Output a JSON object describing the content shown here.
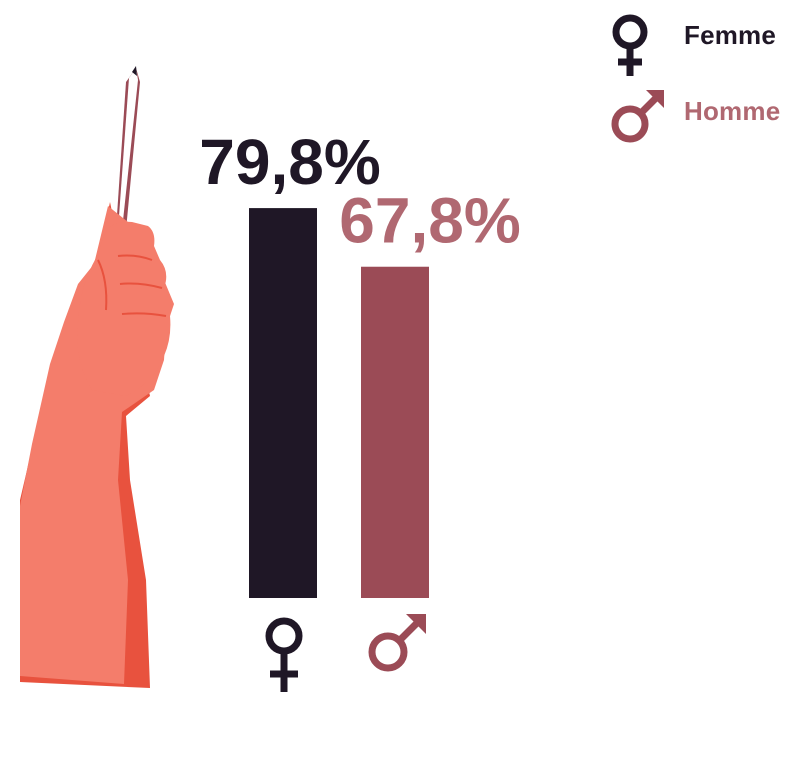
{
  "colors": {
    "femme": "#1f1726",
    "homme": "#9b4b56",
    "homme_text": "#b06871",
    "skin": "#f47d6b",
    "skin_shadow": "#e8523e"
  },
  "legend": {
    "femme_label": "Femme",
    "homme_label": "Homme",
    "femme_icon": "venus-icon",
    "homme_icon": "mars-icon"
  },
  "chart_data": {
    "type": "bar",
    "categories": [
      "Femme",
      "Homme"
    ],
    "values": [
      79.8,
      67.8
    ],
    "value_labels": [
      "79,8%",
      "67,8%"
    ],
    "category_icons": [
      "venus-icon",
      "mars-icon"
    ],
    "ylim": [
      0,
      100
    ],
    "grid": false,
    "legend_position": "top-right"
  }
}
